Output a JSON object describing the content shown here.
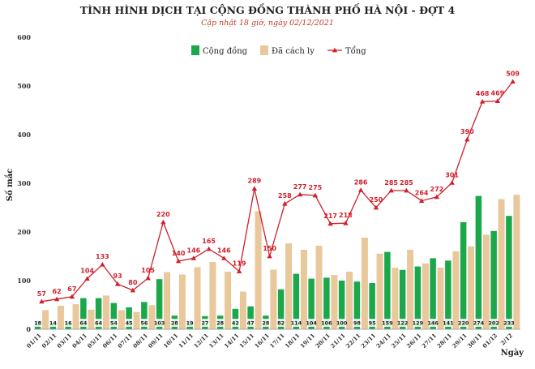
{
  "chart_data": {
    "type": "bar",
    "title": "TÌNH HÌNH DỊCH TẠI CỘNG ĐỒNG THÀNH PHỐ HÀ NỘI - ĐỢT 4",
    "subtitle": "Cập nhật 18 giờ, ngày 02/12/2021",
    "xlabel": "Ngày",
    "ylabel": "Số mắc",
    "ylim": [
      0,
      600
    ],
    "yticks": [
      0,
      100,
      200,
      300,
      400,
      500,
      600
    ],
    "grid": false,
    "legend_position": "top-center",
    "categories": [
      "01/11",
      "02/11",
      "03/11",
      "04/11",
      "05/11",
      "06/11",
      "07/11",
      "08/11",
      "09/11",
      "10/11",
      "11/11",
      "12/11",
      "13/11",
      "14/11",
      "15/11",
      "16/11",
      "17/11",
      "18/11",
      "19/11",
      "20/11",
      "21/11",
      "22/11",
      "23/11",
      "24/11",
      "25/11",
      "26/11",
      "27/11",
      "28/11",
      "29/11",
      "30/11",
      "01/12",
      "2/12"
    ],
    "series": [
      {
        "name": "Cộng đồng",
        "kind": "bar",
        "color": "#1aa84a",
        "values": [
          18,
          14,
          16,
          64,
          64,
          54,
          45,
          56,
          103,
          28,
          19,
          27,
          28,
          42,
          47,
          28,
          82,
          114,
          104,
          106,
          100,
          98,
          95,
          159,
          122,
          129,
          146,
          141,
          220,
          274,
          202,
          233
        ]
      },
      {
        "name": "Đã cách ly",
        "kind": "bar",
        "color": "#e9c99b",
        "values": [
          39,
          48,
          51,
          40,
          69,
          39,
          35,
          49,
          117,
          112,
          127,
          138,
          118,
          77,
          242,
          122,
          176,
          163,
          171,
          111,
          118,
          188,
          155,
          126,
          163,
          135,
          126,
          160,
          170,
          194,
          267,
          276
        ]
      },
      {
        "name": "Tổng",
        "kind": "line",
        "color": "#d11f2a",
        "values": [
          57,
          62,
          67,
          104,
          133,
          93,
          80,
          105,
          220,
          140,
          146,
          165,
          146,
          119,
          289,
          150,
          258,
          277,
          275,
          217,
          218,
          286,
          250,
          285,
          285,
          264,
          272,
          301,
          390,
          468,
          469,
          509
        ]
      }
    ]
  }
}
